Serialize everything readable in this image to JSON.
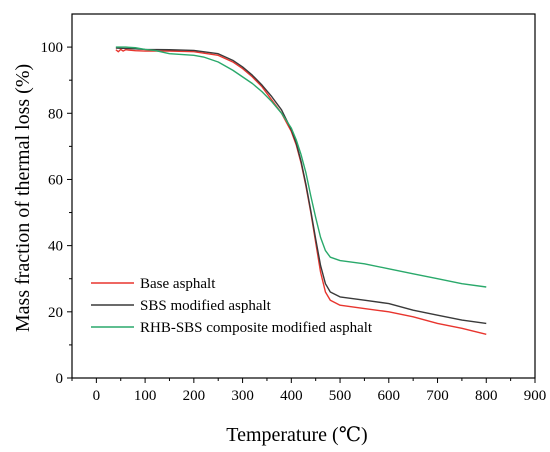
{
  "chart_data": {
    "type": "line",
    "xlabel": "Temperature (℃)",
    "ylabel": "Mass fraction of thermal loss (%)",
    "xlim": [
      -50,
      900
    ],
    "ylim": [
      0,
      110
    ],
    "xticks": [
      0,
      100,
      200,
      300,
      400,
      500,
      600,
      700,
      800,
      900
    ],
    "yticks": [
      0,
      20,
      40,
      60,
      80,
      100
    ],
    "grid": false,
    "legend_position": "bottom-left",
    "series": [
      {
        "name": "Base asphalt",
        "color": "#e8352e",
        "points": [
          [
            40,
            99.2
          ],
          [
            45,
            98.6
          ],
          [
            50,
            99.3
          ],
          [
            55,
            98.8
          ],
          [
            60,
            99.2
          ],
          [
            80,
            98.9
          ],
          [
            100,
            98.8
          ],
          [
            150,
            98.8
          ],
          [
            200,
            98.6
          ],
          [
            250,
            97.5
          ],
          [
            280,
            95.5
          ],
          [
            300,
            93.5
          ],
          [
            320,
            91
          ],
          [
            340,
            88
          ],
          [
            360,
            84
          ],
          [
            380,
            80
          ],
          [
            400,
            74.5
          ],
          [
            410,
            70.5
          ],
          [
            420,
            65
          ],
          [
            430,
            58
          ],
          [
            440,
            50
          ],
          [
            450,
            41
          ],
          [
            460,
            32
          ],
          [
            470,
            26
          ],
          [
            480,
            23.5
          ],
          [
            500,
            22
          ],
          [
            550,
            21
          ],
          [
            600,
            20
          ],
          [
            650,
            18.5
          ],
          [
            700,
            16.5
          ],
          [
            750,
            15
          ],
          [
            800,
            13.2
          ]
        ]
      },
      {
        "name": "SBS modified asphalt",
        "color": "#3a3a3a",
        "points": [
          [
            40,
            99.7
          ],
          [
            60,
            99.6
          ],
          [
            80,
            99.5
          ],
          [
            100,
            99.3
          ],
          [
            150,
            99.2
          ],
          [
            200,
            99
          ],
          [
            250,
            98
          ],
          [
            280,
            96
          ],
          [
            300,
            94
          ],
          [
            320,
            91.5
          ],
          [
            340,
            88.5
          ],
          [
            360,
            85
          ],
          [
            380,
            81
          ],
          [
            400,
            75
          ],
          [
            410,
            71
          ],
          [
            420,
            65.5
          ],
          [
            430,
            58.5
          ],
          [
            440,
            50.5
          ],
          [
            450,
            42
          ],
          [
            460,
            34
          ],
          [
            470,
            28.5
          ],
          [
            480,
            26
          ],
          [
            500,
            24.5
          ],
          [
            550,
            23.5
          ],
          [
            600,
            22.5
          ],
          [
            650,
            20.5
          ],
          [
            700,
            19
          ],
          [
            750,
            17.5
          ],
          [
            800,
            16.5
          ]
        ]
      },
      {
        "name": "RHB-SBS composite modified asphalt",
        "color": "#2aa96b",
        "points": [
          [
            40,
            100
          ],
          [
            60,
            100
          ],
          [
            80,
            99.8
          ],
          [
            100,
            99.3
          ],
          [
            120,
            99
          ],
          [
            150,
            98
          ],
          [
            200,
            97.5
          ],
          [
            220,
            97
          ],
          [
            250,
            95.5
          ],
          [
            280,
            93
          ],
          [
            300,
            91
          ],
          [
            320,
            89
          ],
          [
            340,
            86.5
          ],
          [
            360,
            83.5
          ],
          [
            380,
            80
          ],
          [
            400,
            75.5
          ],
          [
            410,
            72
          ],
          [
            420,
            67.5
          ],
          [
            430,
            62
          ],
          [
            440,
            55
          ],
          [
            450,
            48.5
          ],
          [
            460,
            42.5
          ],
          [
            470,
            38.5
          ],
          [
            480,
            36.5
          ],
          [
            500,
            35.5
          ],
          [
            550,
            34.5
          ],
          [
            600,
            33
          ],
          [
            650,
            31.5
          ],
          [
            700,
            30
          ],
          [
            750,
            28.5
          ],
          [
            800,
            27.5
          ]
        ]
      }
    ]
  }
}
